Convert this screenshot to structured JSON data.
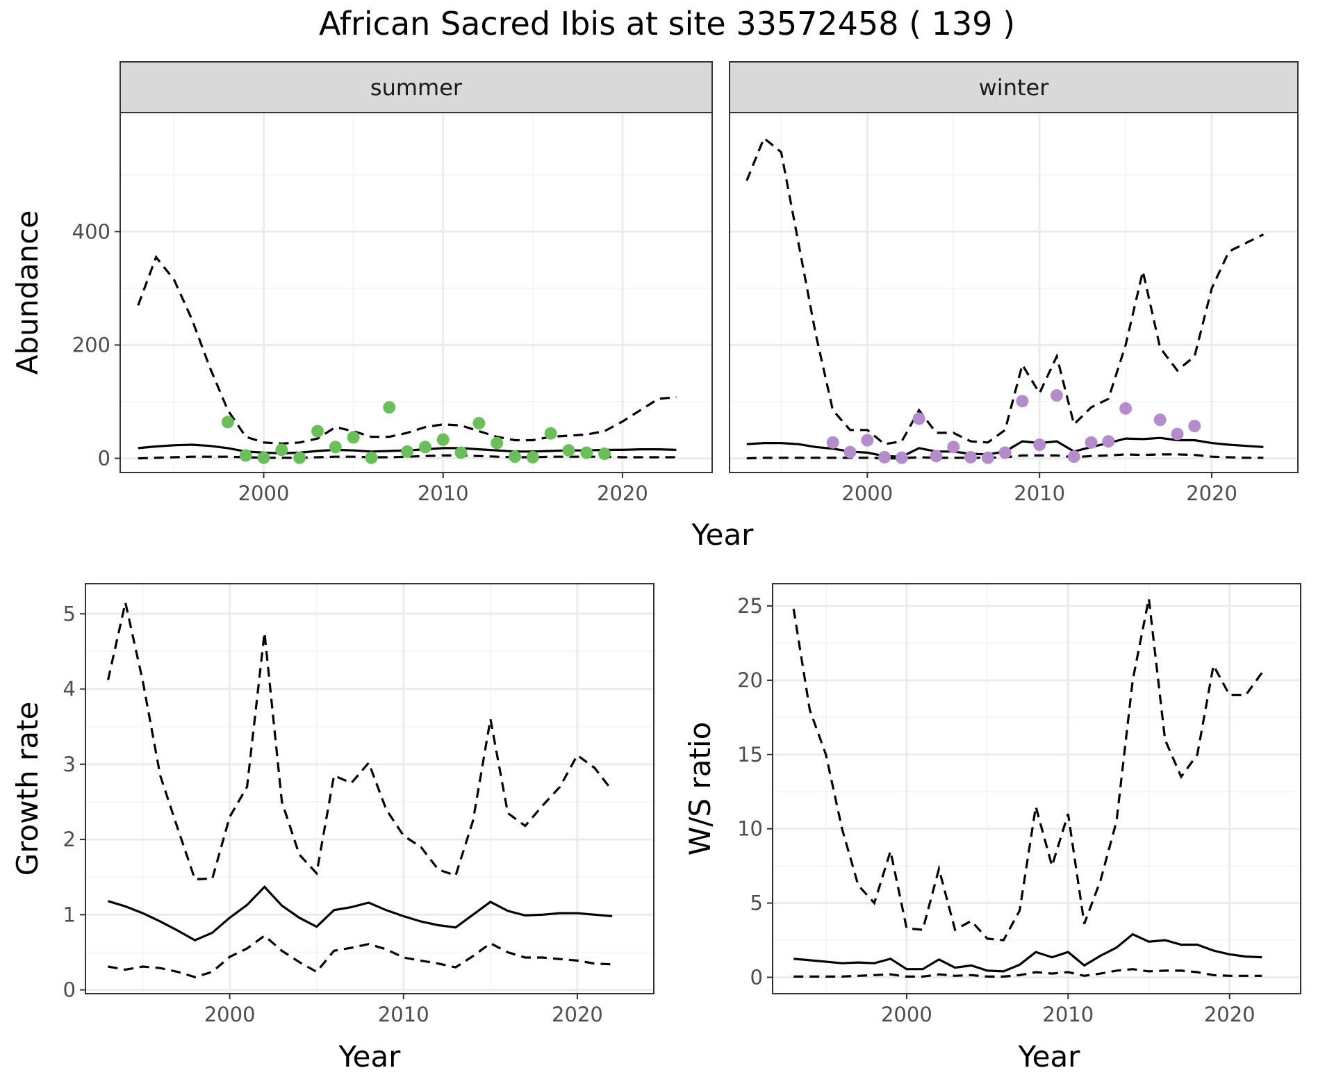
{
  "title": "African Sacred Ibis at site 33572458 ( 139 )",
  "colors": {
    "summer_points": "#6abf5a",
    "winter_points": "#b48ccc",
    "lines": "#000000"
  },
  "chart_data": [
    {
      "id": "abundance-summer",
      "type": "line",
      "facet_label": "summer",
      "ylabel": "Abundance",
      "xlabel": "Year",
      "xlim": [
        1992,
        2025
      ],
      "ylim": [
        -25,
        610
      ],
      "x_ticks": [
        2000,
        2010,
        2020
      ],
      "y_ticks": [
        0,
        200,
        400
      ],
      "grid": true,
      "series": [
        {
          "style": "solid",
          "x": [
            1993,
            1994,
            1995,
            1996,
            1997,
            1998,
            1999,
            2000,
            2001,
            2002,
            2003,
            2004,
            2005,
            2006,
            2007,
            2008,
            2009,
            2010,
            2011,
            2012,
            2013,
            2014,
            2015,
            2016,
            2017,
            2018,
            2019,
            2020,
            2021,
            2022,
            2023
          ],
          "y": [
            18,
            21,
            23,
            24,
            22,
            18,
            12,
            10,
            9,
            10,
            13,
            15,
            14,
            12,
            13,
            14,
            16,
            18,
            18,
            16,
            14,
            12,
            12,
            13,
            14,
            14,
            15,
            15,
            16,
            16,
            15
          ]
        },
        {
          "style": "dashed",
          "x": [
            1993,
            1994,
            1995,
            1996,
            1997,
            1998,
            1999,
            2000,
            2001,
            2002,
            2003,
            2004,
            2005,
            2006,
            2007,
            2008,
            2009,
            2010,
            2011,
            2012,
            2013,
            2014,
            2015,
            2016,
            2017,
            2018,
            2019,
            2020,
            2021,
            2022,
            2023
          ],
          "y": [
            270,
            355,
            315,
            245,
            160,
            85,
            38,
            28,
            26,
            28,
            35,
            55,
            48,
            38,
            38,
            45,
            55,
            60,
            58,
            48,
            38,
            32,
            32,
            38,
            40,
            42,
            48,
            65,
            85,
            105,
            108
          ]
        },
        {
          "style": "dashed",
          "x": [
            1993,
            1994,
            1995,
            1996,
            1997,
            1998,
            1999,
            2000,
            2001,
            2002,
            2003,
            2004,
            2005,
            2006,
            2007,
            2008,
            2009,
            2010,
            2011,
            2012,
            2013,
            2014,
            2015,
            2016,
            2017,
            2018,
            2019,
            2020,
            2021,
            2022,
            2023
          ],
          "y": [
            0,
            1,
            2,
            3,
            3,
            3,
            2,
            1,
            1,
            1,
            2,
            3,
            3,
            2,
            2,
            3,
            4,
            5,
            5,
            4,
            3,
            2,
            2,
            3,
            3,
            3,
            3,
            2,
            2,
            2,
            2
          ]
        },
        {
          "style": "points",
          "x": [
            1998,
            1999,
            2000,
            2001,
            2002,
            2003,
            2004,
            2005,
            2006,
            2007,
            2008,
            2009,
            2010,
            2011,
            2012,
            2013,
            2014,
            2015,
            2016,
            2017,
            2018,
            2019
          ],
          "y": [
            64,
            5,
            1,
            15,
            1,
            48,
            20,
            37,
            1,
            90,
            12,
            20,
            33,
            10,
            62,
            27,
            3,
            2,
            44,
            14,
            10,
            8
          ]
        }
      ]
    },
    {
      "id": "abundance-winter",
      "type": "line",
      "facet_label": "winter",
      "ylabel": "",
      "xlabel": "Year",
      "xlim": [
        1992,
        2025
      ],
      "ylim": [
        -25,
        610
      ],
      "x_ticks": [
        2000,
        2010,
        2020
      ],
      "y_ticks": [
        0,
        200,
        400
      ],
      "grid": true,
      "series": [
        {
          "style": "solid",
          "x": [
            1993,
            1994,
            1995,
            1996,
            1997,
            1998,
            1999,
            2000,
            2001,
            2002,
            2003,
            2004,
            2005,
            2006,
            2007,
            2008,
            2009,
            2010,
            2011,
            2012,
            2013,
            2014,
            2015,
            2016,
            2017,
            2018,
            2019,
            2020,
            2021,
            2022,
            2023
          ],
          "y": [
            25,
            27,
            27,
            25,
            20,
            17,
            12,
            10,
            4,
            3,
            18,
            12,
            12,
            8,
            7,
            12,
            30,
            27,
            30,
            12,
            20,
            27,
            35,
            34,
            36,
            32,
            32,
            27,
            24,
            22,
            20
          ]
        },
        {
          "style": "dashed",
          "x": [
            1993,
            1994,
            1995,
            1996,
            1997,
            1998,
            1999,
            2000,
            2001,
            2002,
            2003,
            2004,
            2005,
            2006,
            2007,
            2008,
            2009,
            2010,
            2011,
            2012,
            2013,
            2014,
            2015,
            2016,
            2017,
            2018,
            2019,
            2020,
            2021,
            2022,
            2023
          ],
          "y": [
            490,
            565,
            540,
            380,
            220,
            85,
            50,
            50,
            25,
            30,
            85,
            45,
            45,
            30,
            28,
            50,
            165,
            115,
            180,
            60,
            90,
            105,
            200,
            330,
            195,
            155,
            180,
            300,
            365,
            380,
            395
          ]
        },
        {
          "style": "dashed",
          "x": [
            1993,
            1994,
            1995,
            1996,
            1997,
            1998,
            1999,
            2000,
            2001,
            2002,
            2003,
            2004,
            2005,
            2006,
            2007,
            2008,
            2009,
            2010,
            2011,
            2012,
            2013,
            2014,
            2015,
            2016,
            2017,
            2018,
            2019,
            2020,
            2021,
            2022,
            2023
          ],
          "y": [
            0,
            1,
            1,
            1,
            1,
            1,
            1,
            1,
            0,
            0,
            2,
            1,
            1,
            1,
            1,
            2,
            5,
            5,
            5,
            2,
            4,
            5,
            7,
            6,
            7,
            7,
            6,
            3,
            2,
            1,
            1
          ]
        },
        {
          "style": "points",
          "x": [
            1998,
            1999,
            2000,
            2001,
            2002,
            2003,
            2004,
            2005,
            2006,
            2007,
            2008,
            2009,
            2010,
            2011,
            2012,
            2013,
            2014,
            2015,
            2017,
            2018,
            2019
          ],
          "y": [
            28,
            11,
            32,
            2,
            1,
            70,
            4,
            20,
            2,
            1,
            10,
            101,
            24,
            111,
            3,
            28,
            30,
            88,
            68,
            43,
            57
          ]
        }
      ]
    },
    {
      "id": "growth-rate",
      "type": "line",
      "ylabel": "Growth rate",
      "xlabel": "Year",
      "xlim": [
        1991.7,
        2024.4
      ],
      "ylim": [
        -0.05,
        5.4
      ],
      "x_ticks": [
        2000,
        2010,
        2020
      ],
      "y_ticks": [
        0,
        1,
        2,
        3,
        4,
        5
      ],
      "grid": true,
      "series": [
        {
          "style": "solid",
          "x": [
            1993,
            1994,
            1995,
            1996,
            1997,
            1998,
            1999,
            2000,
            2001,
            2002,
            2003,
            2004,
            2005,
            2006,
            2007,
            2008,
            2009,
            2010,
            2011,
            2012,
            2013,
            2014,
            2015,
            2016,
            2017,
            2018,
            2019,
            2020,
            2021,
            2022
          ],
          "y": [
            1.18,
            1.11,
            1.02,
            0.91,
            0.79,
            0.66,
            0.76,
            0.96,
            1.13,
            1.37,
            1.12,
            0.96,
            0.84,
            1.06,
            1.1,
            1.16,
            1.06,
            0.98,
            0.91,
            0.86,
            0.83,
            1.0,
            1.17,
            1.05,
            0.99,
            1.0,
            1.02,
            1.02,
            1.0,
            0.98
          ]
        },
        {
          "style": "dashed",
          "x": [
            1993,
            1994,
            1995,
            1996,
            1997,
            1998,
            1999,
            2000,
            2001,
            2002,
            2003,
            2004,
            2005,
            2006,
            2007,
            2008,
            2009,
            2010,
            2011,
            2012,
            2013,
            2014,
            2015,
            2016,
            2017,
            2018,
            2019,
            2020,
            2021,
            2022
          ],
          "y": [
            4.12,
            5.15,
            4.1,
            2.85,
            2.15,
            1.47,
            1.48,
            2.3,
            2.7,
            4.75,
            2.5,
            1.8,
            1.55,
            2.85,
            2.75,
            3.02,
            2.4,
            2.05,
            1.9,
            1.6,
            1.52,
            2.25,
            3.6,
            2.35,
            2.18,
            2.45,
            2.7,
            3.12,
            2.95,
            2.65
          ]
        },
        {
          "style": "dashed",
          "x": [
            1993,
            1994,
            1995,
            1996,
            1997,
            1998,
            1999,
            2000,
            2001,
            2002,
            2003,
            2004,
            2005,
            2006,
            2007,
            2008,
            2009,
            2010,
            2011,
            2012,
            2013,
            2014,
            2015,
            2016,
            2017,
            2018,
            2019,
            2020,
            2021,
            2022
          ],
          "y": [
            0.31,
            0.27,
            0.31,
            0.29,
            0.24,
            0.17,
            0.24,
            0.44,
            0.55,
            0.72,
            0.52,
            0.37,
            0.24,
            0.52,
            0.56,
            0.61,
            0.54,
            0.43,
            0.39,
            0.35,
            0.3,
            0.45,
            0.62,
            0.5,
            0.43,
            0.43,
            0.41,
            0.39,
            0.35,
            0.34
          ]
        }
      ]
    },
    {
      "id": "ws-ratio",
      "type": "line",
      "ylabel": "W/S ratio",
      "xlabel": "Year",
      "xlim": [
        1991.7,
        2024.4
      ],
      "ylim": [
        -1.1,
        26.5
      ],
      "x_ticks": [
        2000,
        2010,
        2020
      ],
      "y_ticks": [
        0,
        5,
        10,
        15,
        20,
        25
      ],
      "grid": true,
      "series": [
        {
          "style": "solid",
          "x": [
            1993,
            1994,
            1995,
            1996,
            1997,
            1998,
            1999,
            2000,
            2001,
            2002,
            2003,
            2004,
            2005,
            2006,
            2007,
            2008,
            2009,
            2010,
            2011,
            2012,
            2013,
            2014,
            2015,
            2016,
            2017,
            2018,
            2019,
            2020,
            2021,
            2022
          ],
          "y": [
            1.25,
            1.15,
            1.05,
            0.95,
            1.0,
            0.95,
            1.25,
            0.55,
            0.55,
            1.2,
            0.65,
            0.8,
            0.45,
            0.4,
            0.85,
            1.7,
            1.35,
            1.7,
            0.8,
            1.45,
            2.0,
            2.9,
            2.4,
            2.5,
            2.2,
            2.2,
            1.8,
            1.55,
            1.4,
            1.35
          ]
        },
        {
          "style": "dashed",
          "x": [
            1993,
            1994,
            1995,
            1996,
            1997,
            1998,
            1999,
            2000,
            2001,
            2002,
            2003,
            2004,
            2005,
            2006,
            2007,
            2008,
            2009,
            2010,
            2011,
            2012,
            2013,
            2014,
            2015,
            2016,
            2017,
            2018,
            2019,
            2020,
            2021,
            2022
          ],
          "y": [
            24.8,
            18.0,
            15.0,
            10.0,
            6.2,
            5.0,
            8.5,
            3.3,
            3.2,
            7.3,
            3.2,
            3.8,
            2.6,
            2.5,
            4.5,
            11.5,
            7.5,
            11.0,
            3.6,
            6.5,
            10.5,
            20.0,
            25.5,
            16.0,
            13.5,
            15.0,
            21.0,
            19.0,
            19.0,
            20.5
          ]
        },
        {
          "style": "dashed",
          "x": [
            1993,
            1994,
            1995,
            1996,
            1997,
            1998,
            1999,
            2000,
            2001,
            2002,
            2003,
            2004,
            2005,
            2006,
            2007,
            2008,
            2009,
            2010,
            2011,
            2012,
            2013,
            2014,
            2015,
            2016,
            2017,
            2018,
            2019,
            2020,
            2021,
            2022
          ],
          "y": [
            0.05,
            0.05,
            0.05,
            0.05,
            0.1,
            0.15,
            0.2,
            0.05,
            0.05,
            0.2,
            0.1,
            0.15,
            0.05,
            0.05,
            0.15,
            0.35,
            0.25,
            0.35,
            0.1,
            0.25,
            0.45,
            0.55,
            0.4,
            0.45,
            0.45,
            0.35,
            0.15,
            0.1,
            0.1,
            0.1
          ]
        }
      ]
    }
  ]
}
